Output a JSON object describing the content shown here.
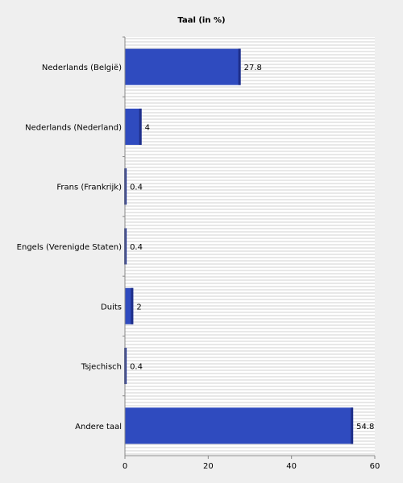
{
  "chart_data": {
    "type": "bar",
    "orientation": "horizontal",
    "title": "Taal (in %)",
    "xlabel": "",
    "ylabel": "",
    "categories": [
      "Nederlands (België)",
      "Nederlands (Nederland)",
      "Frans (Frankrijk)",
      "Engels (Verenigde Staten)",
      "Duits",
      "Tsjechisch",
      "Andere taal"
    ],
    "values": [
      27.8,
      4,
      0.4,
      0.4,
      2,
      0.4,
      54.8
    ],
    "value_labels": [
      "27.8",
      "4",
      "0.4",
      "0.4",
      "2",
      "0.4",
      "54.8"
    ],
    "xlim": [
      0,
      60
    ],
    "xticks": [
      0,
      20,
      40,
      60
    ],
    "grid": true,
    "legend": "none",
    "colors": {
      "background": "#efefef",
      "plot_background": "#ffffff",
      "gridline": "#d2d2d2",
      "bar": "#2f4bbf",
      "bar_shade": "#1f2f8a",
      "axis": "#888888"
    }
  }
}
